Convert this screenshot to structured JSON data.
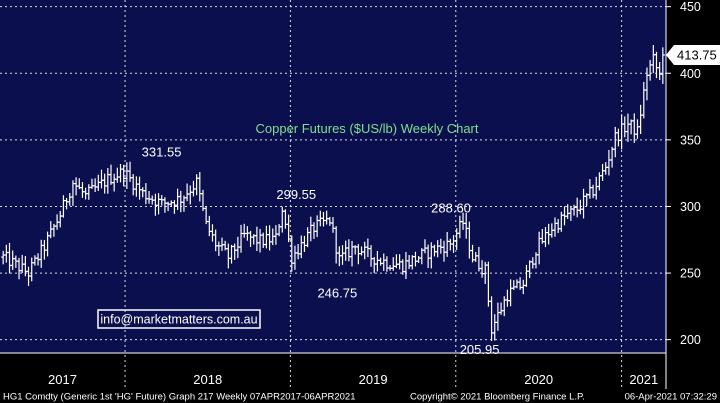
{
  "colors": {
    "background": "#0b0f4d",
    "border": "#ffffff",
    "gridline": "#ffffff",
    "bars": "#ffffff",
    "title": "#7fe08c",
    "watermark_text": "#ffffff",
    "watermark_border": "#ffffff",
    "footer_bg": "#000000",
    "footer_text": "#ffffff"
  },
  "footer": {
    "left": "HG1 Comdty (Generic 1st 'HG' Future) Graph 217  Weekly 07APR2017-06APR2021",
    "center": "Copyright© 2021 Bloomberg Finance L.P.",
    "right": "06-Apr-2021 07:32:29"
  },
  "watermark": "info@marketmatters.com.au",
  "chart_data": {
    "type": "ohlc",
    "title": "Copper Futures ($US/lb) Weekly Chart",
    "frequency": "weekly",
    "x_range": [
      "2017-04-07",
      "2021-04-06"
    ],
    "x_tick_labels": [
      "2017",
      "2018",
      "2019",
      "2020",
      "2021"
    ],
    "year_dividers": [
      "2018-01-01",
      "2019-01-01",
      "2020-01-01",
      "2021-01-01"
    ],
    "ylim": [
      190,
      455
    ],
    "y_ticks": [
      200,
      250,
      300,
      350,
      400,
      450
    ],
    "grid": "horizontal dashed",
    "last_price": "413.75",
    "annotations": [
      {
        "label": "331.55",
        "date": "2017-12-29",
        "value": 331.55
      },
      {
        "label": "299.55",
        "date": "2018-12-14",
        "value": 299.55
      },
      {
        "label": "246.75",
        "date": "2019-04-19",
        "value": 246.75
      },
      {
        "label": "288.60",
        "date": "2020-01-17",
        "value": 288.6
      },
      {
        "label": "205.95",
        "date": "2020-03-20",
        "value": 205.95
      }
    ],
    "series": [
      {
        "dates": [
          "2017-04-07",
          "2017-06-02",
          "2017-07-07",
          "2017-08-11",
          "2017-09-08",
          "2017-10-06",
          "2017-11-03",
          "2017-12-01",
          "2017-12-29",
          "2018-02-09",
          "2018-03-23",
          "2018-05-04",
          "2018-06-08",
          "2018-06-29",
          "2018-07-20",
          "2018-08-17",
          "2018-09-21",
          "2018-10-26",
          "2018-11-30",
          "2018-12-14",
          "2019-01-04",
          "2019-02-22",
          "2019-03-29",
          "2019-04-19",
          "2019-05-24",
          "2019-06-28",
          "2019-08-02",
          "2019-09-06",
          "2019-10-11",
          "2019-11-15",
          "2019-12-20",
          "2020-01-17",
          "2020-02-07",
          "2020-03-06",
          "2020-03-20",
          "2020-04-24",
          "2020-05-29",
          "2020-06-26",
          "2020-07-31",
          "2020-08-28",
          "2020-09-25",
          "2020-10-30",
          "2020-11-27",
          "2020-12-18",
          "2021-01-15",
          "2021-02-05",
          "2021-02-26",
          "2021-03-12",
          "2021-03-26",
          "2021-04-06"
        ],
        "close": [
          262,
          250,
          270,
          294,
          318,
          308,
          315,
          322,
          326,
          310,
          302,
          306,
          318,
          286,
          272,
          262,
          278,
          274,
          276,
          299,
          262,
          284,
          290,
          260,
          270,
          262,
          258,
          256,
          262,
          268,
          272,
          288,
          262,
          252,
          208,
          234,
          242,
          268,
          284,
          292,
          298,
          312,
          330,
          352,
          362,
          356,
          400,
          410,
          398,
          413.75
        ]
      }
    ]
  }
}
